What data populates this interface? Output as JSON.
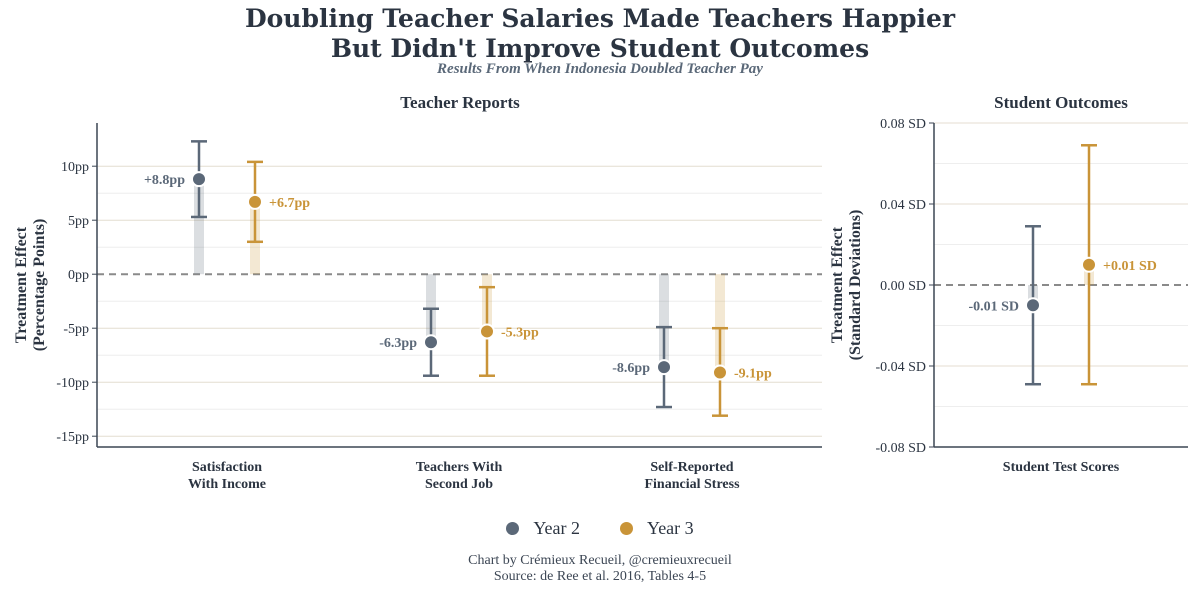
{
  "title_line1": "Doubling Teacher Salaries Made Teachers Happier",
  "title_line2": "But Didn't Improve Student Outcomes",
  "subtitle": "Results From When Indonesia Doubled Teacher Pay",
  "colors": {
    "year2": "#5b6878",
    "year3": "#c99438",
    "axis": "#3c4654",
    "zero": "#8a8a8a"
  },
  "legend": [
    {
      "label": "Year 2",
      "color": "#5b6878"
    },
    {
      "label": "Year 3",
      "color": "#c99438"
    }
  ],
  "credit": "Chart by Crémieux Recueil, @cremieuxrecueil",
  "source": "Source: de Ree et al. 2016, Tables 4-5",
  "chart_data": [
    {
      "panel": "Teacher Reports",
      "type": "scatter",
      "ylabel": [
        "Treatment Effect",
        "(Percentage Points)"
      ],
      "ylim": [
        -16,
        14
      ],
      "yticks": [
        10,
        5,
        0,
        -5,
        -10,
        -15
      ],
      "ytick_labels": [
        "10pp",
        "5pp",
        "0pp",
        "-5pp",
        "-10pp",
        "-15pp"
      ],
      "categories": [
        [
          "Satisfaction",
          "With Income"
        ],
        [
          "Teachers With",
          "Second Job"
        ],
        [
          "Self-Reported",
          "Financial Stress"
        ]
      ],
      "series": [
        {
          "name": "Year 2",
          "values": [
            8.8,
            -6.3,
            -8.6
          ],
          "ci_low": [
            5.3,
            -9.4,
            -12.3
          ],
          "ci_high": [
            12.3,
            -3.2,
            -4.9
          ],
          "labels": [
            "+8.8pp",
            "-6.3pp",
            "-8.6pp"
          ]
        },
        {
          "name": "Year 3",
          "values": [
            6.7,
            -5.3,
            -9.1
          ],
          "ci_low": [
            3.0,
            -9.4,
            -13.1
          ],
          "ci_high": [
            10.4,
            -1.2,
            -5.0
          ],
          "labels": [
            "+6.7pp",
            "-5.3pp",
            "-9.1pp"
          ]
        }
      ],
      "grid": true
    },
    {
      "panel": "Student Outcomes",
      "type": "scatter",
      "ylabel": [
        "Treatment Effect",
        "(Standard Deviations)"
      ],
      "ylim": [
        -0.08,
        0.08
      ],
      "yticks": [
        0.08,
        0.04,
        0.0,
        -0.04,
        -0.08
      ],
      "ytick_labels": [
        "0.08 SD",
        "0.04 SD",
        "0.00 SD",
        "-0.04 SD",
        "-0.08 SD"
      ],
      "categories": [
        [
          "Student Test Scores"
        ]
      ],
      "series": [
        {
          "name": "Year 2",
          "values": [
            -0.01
          ],
          "ci_low": [
            -0.049
          ],
          "ci_high": [
            0.029
          ],
          "labels": [
            "-0.01 SD"
          ]
        },
        {
          "name": "Year 3",
          "values": [
            0.01
          ],
          "ci_low": [
            -0.049
          ],
          "ci_high": [
            0.069
          ],
          "labels": [
            "+0.01 SD"
          ]
        }
      ],
      "grid": true
    }
  ]
}
